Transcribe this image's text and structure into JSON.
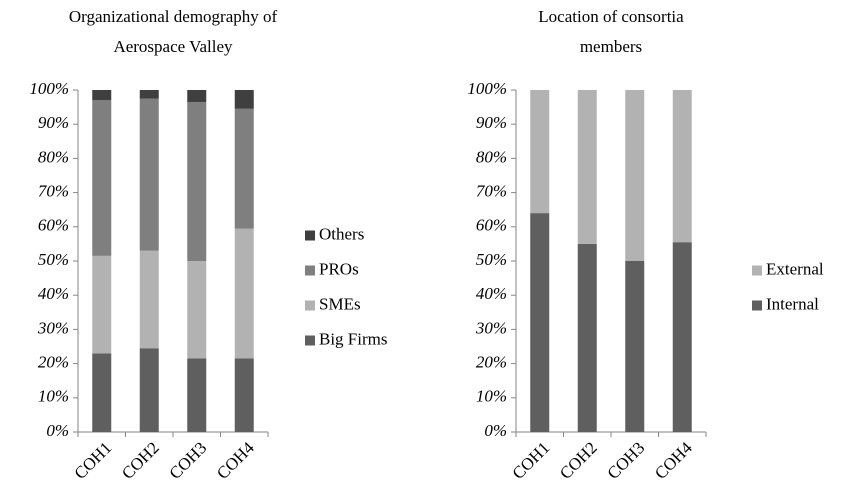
{
  "chart_data": [
    {
      "type": "stacked_bar",
      "title": [
        "Organizational demography of",
        "Aerospace Valley"
      ],
      "categories": [
        "COH1",
        "COH2",
        "COH3",
        "COH4"
      ],
      "series": [
        {
          "name": "Big Firms",
          "color": "#5f5f5f",
          "values": [
            23,
            24.5,
            21.5,
            21.5
          ]
        },
        {
          "name": "SMEs",
          "color": "#b2b2b2",
          "values": [
            28.5,
            28.5,
            28.5,
            38
          ]
        },
        {
          "name": "PROs",
          "color": "#7f7f7f",
          "values": [
            45.5,
            44.5,
            46.5,
            35
          ]
        },
        {
          "name": "Others",
          "color": "#3f3f3f",
          "values": [
            3,
            2.5,
            3.5,
            5.5
          ]
        }
      ],
      "ylim": [
        0,
        100
      ],
      "yticks": [
        {
          "value": 0,
          "label": "0%"
        },
        {
          "value": 10,
          "label": "10%"
        },
        {
          "value": 20,
          "label": "20%"
        },
        {
          "value": 30,
          "label": "30%"
        },
        {
          "value": 40,
          "label": "40%"
        },
        {
          "value": 50,
          "label": "50%"
        },
        {
          "value": 60,
          "label": "60%"
        },
        {
          "value": 70,
          "label": "70%"
        },
        {
          "value": 80,
          "label": "80%"
        },
        {
          "value": 90,
          "label": "90%"
        },
        {
          "value": 100,
          "label": "100%"
        }
      ],
      "legend": "right",
      "grid": false
    },
    {
      "type": "stacked_bar",
      "title": [
        "Location of consortia",
        "members"
      ],
      "categories": [
        "COH1",
        "COH2",
        "COH3",
        "COH4"
      ],
      "series": [
        {
          "name": "Internal",
          "color": "#5f5f5f",
          "values": [
            64,
            55,
            50,
            55.5
          ]
        },
        {
          "name": "External",
          "color": "#b2b2b2",
          "values": [
            36,
            45,
            50,
            44.5
          ]
        }
      ],
      "ylim": [
        0,
        100
      ],
      "yticks": [
        {
          "value": 0,
          "label": "0%"
        },
        {
          "value": 10,
          "label": "10%"
        },
        {
          "value": 20,
          "label": "20%"
        },
        {
          "value": 30,
          "label": "30%"
        },
        {
          "value": 40,
          "label": "40%"
        },
        {
          "value": 50,
          "label": "50%"
        },
        {
          "value": 60,
          "label": "60%"
        },
        {
          "value": 70,
          "label": "70%"
        },
        {
          "value": 80,
          "label": "80%"
        },
        {
          "value": 90,
          "label": "90%"
        },
        {
          "value": 100,
          "label": "100%"
        }
      ],
      "legend": "right",
      "grid": false
    }
  ]
}
